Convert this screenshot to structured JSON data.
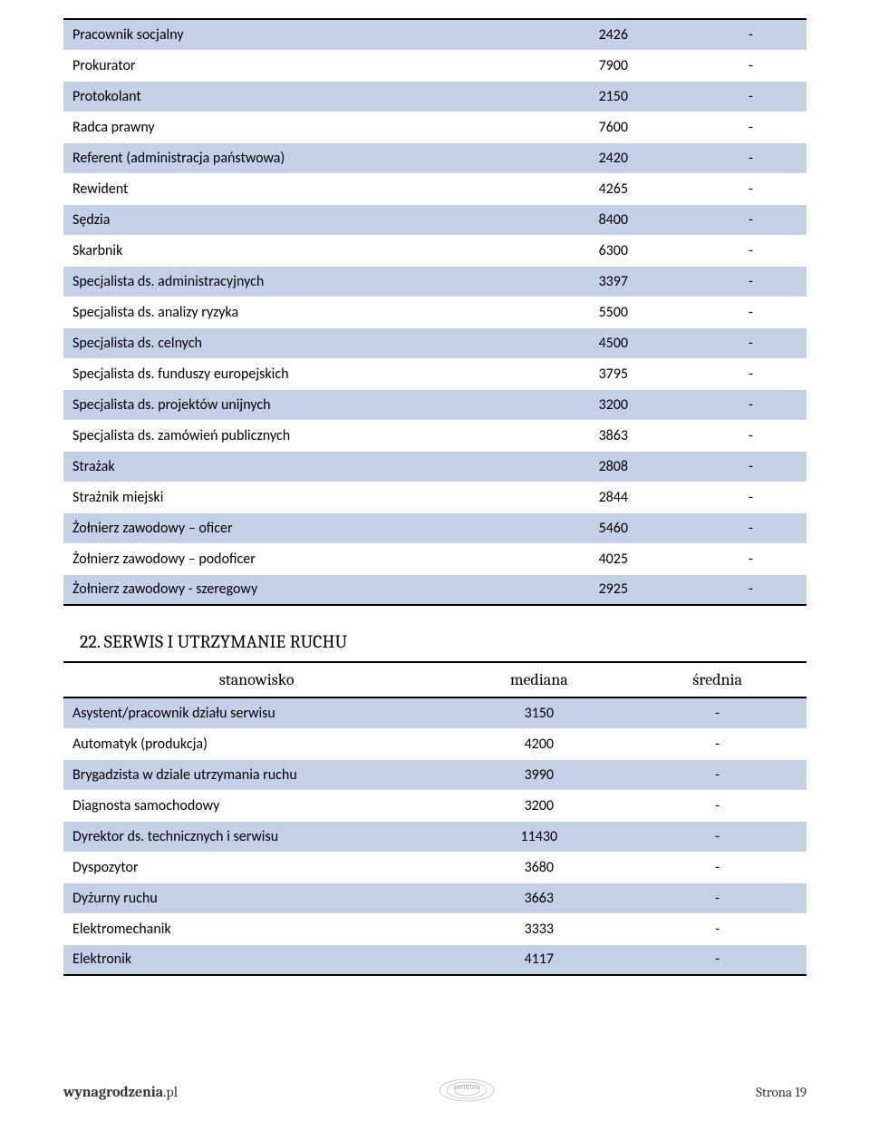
{
  "colors": {
    "row_odd": "#c2d1e5",
    "row_even": "#ffffff",
    "border": "#000000",
    "text": "#000000",
    "footer_text": "#333333"
  },
  "typography": {
    "body_font": "Calibri",
    "heading_font": "Cambria",
    "body_size_pt": 12,
    "heading_size_pt": 15
  },
  "table1": {
    "type": "table",
    "columns_widths": [
      "63%",
      "22%",
      "15%"
    ],
    "alignment": [
      "left",
      "center",
      "center"
    ],
    "rows": [
      {
        "label": "Pracownik socjalny",
        "mediana": "2426",
        "srednia": "-"
      },
      {
        "label": "Prokurator",
        "mediana": "7900",
        "srednia": "-"
      },
      {
        "label": "Protokolant",
        "mediana": "2150",
        "srednia": "-"
      },
      {
        "label": "Radca prawny",
        "mediana": "7600",
        "srednia": "-"
      },
      {
        "label": "Referent (administracja państwowa)",
        "mediana": "2420",
        "srednia": "-"
      },
      {
        "label": "Rewident",
        "mediana": "4265",
        "srednia": "-"
      },
      {
        "label": "Sędzia",
        "mediana": "8400",
        "srednia": "-"
      },
      {
        "label": "Skarbnik",
        "mediana": "6300",
        "srednia": "-"
      },
      {
        "label": "Specjalista ds. administracyjnych",
        "mediana": "3397",
        "srednia": "-"
      },
      {
        "label": "Specjalista ds. analizy ryzyka",
        "mediana": "5500",
        "srednia": "-"
      },
      {
        "label": "Specjalista ds. celnych",
        "mediana": "4500",
        "srednia": "-"
      },
      {
        "label": "Specjalista ds. funduszy europejskich",
        "mediana": "3795",
        "srednia": "-"
      },
      {
        "label": "Specjalista ds. projektów unijnych",
        "mediana": "3200",
        "srednia": "-"
      },
      {
        "label": "Specjalista ds. zamówień publicznych",
        "mediana": "3863",
        "srednia": "-"
      },
      {
        "label": "Strażak",
        "mediana": "2808",
        "srednia": "-"
      },
      {
        "label": "Strażnik miejski",
        "mediana": "2844",
        "srednia": "-"
      },
      {
        "label": "Żołnierz zawodowy – oficer",
        "mediana": "5460",
        "srednia": "-"
      },
      {
        "label": "Żołnierz zawodowy – podoficer",
        "mediana": "4025",
        "srednia": "-"
      },
      {
        "label": "Żołnierz zawodowy - szeregowy",
        "mediana": "2925",
        "srednia": "-"
      }
    ]
  },
  "section_title": "22. SERWIS I UTRZYMANIE RUCHU",
  "table2": {
    "type": "table",
    "headers": {
      "col1": "stanowisko",
      "col2": "mediana",
      "col3": "średnia"
    },
    "columns_widths": [
      "52%",
      "24%",
      "24%"
    ],
    "alignment": [
      "left",
      "center",
      "center"
    ],
    "rows": [
      {
        "label": "Asystent/pracownik działu serwisu",
        "mediana": "3150",
        "srednia": "-"
      },
      {
        "label": "Automatyk (produkcja)",
        "mediana": "4200",
        "srednia": "-"
      },
      {
        "label": "Brygadzista w dziale utrzymania ruchu",
        "mediana": "3990",
        "srednia": "-"
      },
      {
        "label": "Diagnosta samochodowy",
        "mediana": "3200",
        "srednia": "-"
      },
      {
        "label": "Dyrektor ds. technicznych i serwisu",
        "mediana": "11430",
        "srednia": "-"
      },
      {
        "label": "Dyspozytor",
        "mediana": "3680",
        "srednia": "-"
      },
      {
        "label": "Dyżurny ruchu",
        "mediana": "3663",
        "srednia": "-"
      },
      {
        "label": "Elektromechanik",
        "mediana": "3333",
        "srednia": "-"
      },
      {
        "label": "Elektronik",
        "mediana": "4117",
        "srednia": "-"
      }
    ]
  },
  "footer": {
    "left_bold": "wynagrodzenia",
    "left_rest": ".pl",
    "right": "Strona 19",
    "logo_text": "centrum"
  }
}
